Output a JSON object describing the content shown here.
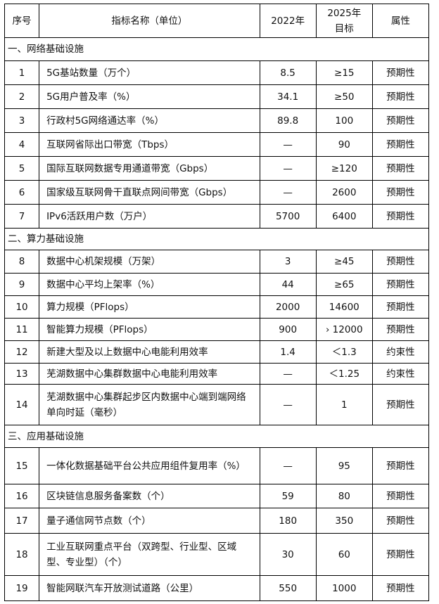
{
  "header": {
    "no": "序号",
    "name": "指标名称（单位）",
    "y2022": "2022年",
    "y2025": "2025年目标",
    "attr": "属性"
  },
  "sections": [
    {
      "title": "一、网络基础设施",
      "rows": [
        {
          "no": "1",
          "name": "5G基站数量（万个）",
          "v2022": "8.5",
          "v2025": "≥15",
          "attr": "预期性"
        },
        {
          "no": "2",
          "name": "5G用户普及率（%）",
          "v2022": "34.1",
          "v2025": "≥50",
          "attr": "预期性"
        },
        {
          "no": "3",
          "name": "行政村5G网络通达率（%）",
          "v2022": "89.8",
          "v2025": "100",
          "attr": "预期性"
        },
        {
          "no": "4",
          "name": "互联网省际出口带宽（Tbps）",
          "v2022": "—",
          "v2025": "90",
          "attr": "预期性"
        },
        {
          "no": "5",
          "name": "国际互联网数据专用通道带宽（Gbps）",
          "v2022": "—",
          "v2025": "≥120",
          "attr": "预期性"
        },
        {
          "no": "6",
          "name": "国家级互联网骨干直联点网间带宽（Gbps）",
          "v2022": "—",
          "v2025": "2600",
          "attr": "预期性"
        },
        {
          "no": "7",
          "name": "IPv6活跃用户数（万户）",
          "v2022": "5700",
          "v2025": "6400",
          "attr": "预期性"
        }
      ]
    },
    {
      "title": "二、算力基础设施",
      "rows": [
        {
          "no": "8",
          "name": "数据中心机架规模（万架）",
          "v2022": "3",
          "v2025": "≥45",
          "attr": "预期性"
        },
        {
          "no": "9",
          "name": "数据中心平均上架率（%）",
          "v2022": "44",
          "v2025": "≥65",
          "attr": "预期性"
        },
        {
          "no": "10",
          "name": "算力规模（PFlops）",
          "v2022": "2000",
          "v2025": "14600",
          "attr": "预期性"
        },
        {
          "no": "11",
          "name": "智能算力规模（PFlops）",
          "v2022": "900",
          "v2025": "› 12000",
          "attr": "预期性"
        },
        {
          "no": "12",
          "name": "新建大型及以上数据中心电能利用效率",
          "v2022": "1.4",
          "v2025": "＜1.3",
          "attr": "约束性"
        },
        {
          "no": "13",
          "name": "芜湖数据中心集群数据中心电能利用效率",
          "v2022": "—",
          "v2025": "＜1.25",
          "attr": "约束性"
        },
        {
          "no": "14",
          "name": "芜湖数据中心集群起步区内数据中心端到端网络单向时延（毫秒）",
          "v2022": "—",
          "v2025": "1",
          "attr": "预期性"
        }
      ]
    },
    {
      "title": "三、应用基础设施",
      "rows": [
        {
          "no": "15",
          "name": "一体化数据基础平台公共应用组件复用率（%）",
          "v2022": "—",
          "v2025": "95",
          "attr": "预期性"
        },
        {
          "no": "16",
          "name": "区块链信息服务备案数（个）",
          "v2022": "59",
          "v2025": "80",
          "attr": "预期性"
        },
        {
          "no": "17",
          "name": "量子通信网节点数（个）",
          "v2022": "180",
          "v2025": "350",
          "attr": "预期性"
        },
        {
          "no": "18",
          "name": "工业互联网重点平台（双跨型、行业型、区域型、专业型）（个）",
          "v2022": "30",
          "v2025": "60",
          "attr": "预期性"
        },
        {
          "no": "19",
          "name": "智能网联汽车开放测试道路（公里）",
          "v2022": "550",
          "v2025": "1000",
          "attr": "预期性"
        }
      ]
    }
  ]
}
